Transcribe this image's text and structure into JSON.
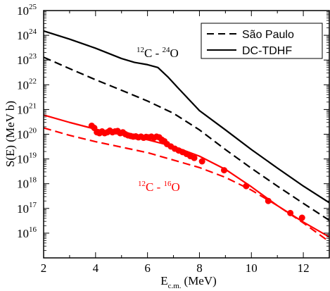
{
  "chart_data": {
    "type": "line",
    "xlabel": "E",
    "xlabel_sub": "c.m.",
    "xlabel_unit": "(MeV)",
    "ylabel": "S(E) (MeV b)",
    "xlim": [
      2,
      13
    ],
    "ylim_log10": [
      15,
      25
    ],
    "y_scale": "log",
    "x_ticks": [
      2,
      4,
      6,
      8,
      10,
      12
    ],
    "y_tick_exponents": [
      16,
      17,
      18,
      19,
      20,
      21,
      22,
      23,
      24,
      25
    ],
    "y_tick_base": "10",
    "legend": {
      "position": "top-right",
      "entries": [
        {
          "label": "São Paulo",
          "style": "dashed"
        },
        {
          "label": "DC-TDHF",
          "style": "solid"
        }
      ]
    },
    "annotations": [
      {
        "mass1": "12",
        "elem1": "C",
        "sep": " - ",
        "mass2": "24",
        "elem2": "O",
        "color": "#000000"
      },
      {
        "mass1": "12",
        "elem1": "C",
        "sep": " - ",
        "mass2": "16",
        "elem2": "O",
        "color": "#ff0000"
      }
    ],
    "series": [
      {
        "system": "12C-24O",
        "model": "DC-TDHF",
        "style": "solid",
        "color": "#000000",
        "x": [
          2.0,
          3.0,
          4.0,
          5.0,
          5.5,
          6.0,
          6.4,
          6.8,
          7.2,
          7.6,
          8.0,
          9.0,
          10.0,
          11.0,
          12.0,
          13.0
        ],
        "y": [
          1.5e+24,
          7e+23,
          3e+23,
          1.15e+23,
          8e+22,
          6.5e+22,
          5e+22,
          2e+22,
          7e+21,
          2.5e+21,
          9e+20,
          1.5e+20,
          2.4e+19,
          4.3e+18,
          8e+17,
          1.7e+17
        ]
      },
      {
        "system": "12C-24O",
        "model": "São Paulo",
        "style": "dashed",
        "color": "#000000",
        "x": [
          2.0,
          3.0,
          4.0,
          5.0,
          6.0,
          7.0,
          8.0,
          9.0,
          10.0,
          11.0,
          12.0,
          13.0
        ],
        "y": [
          1.3e+23,
          4.5e+22,
          1.6e+22,
          6e+21,
          2.2e+21,
          7e+20,
          1.5e+20,
          2.4e+19,
          4.2e+18,
          8e+17,
          1.6e+17,
          3.3e+16
        ]
      },
      {
        "system": "12C-16O",
        "model": "DC-TDHF",
        "style": "solid",
        "color": "#ff0000",
        "x": [
          2.0,
          3.0,
          4.0,
          5.0,
          6.0,
          7.0,
          8.0,
          9.0,
          10.0,
          11.0,
          12.0,
          13.0
        ],
        "y": [
          6e+20,
          3e+20,
          1.6e+20,
          9.5e+19,
          6e+19,
          3.2e+19,
          1.3e+19,
          3.8e+18,
          7.5e+17,
          1.3e+17,
          2.8e+16,
          7000000000000000.0
        ]
      },
      {
        "system": "12C-16O",
        "model": "São Paulo",
        "style": "dashed",
        "color": "#ff0000",
        "x": [
          2.0,
          3.0,
          4.0,
          5.0,
          6.0,
          7.0,
          8.0,
          9.0,
          10.0,
          11.0,
          12.0,
          13.0
        ],
        "y": [
          1.8e+20,
          9e+19,
          5e+19,
          3e+19,
          1.8e+19,
          9e+18,
          4.5e+18,
          1.8e+18,
          5.5e+17,
          1.3e+17,
          2.6e+16,
          4500000000000000.0
        ]
      },
      {
        "system": "12C-16O",
        "model": "experiment",
        "style": "markers",
        "color": "#ff0000",
        "x": [
          3.85,
          3.95,
          4.05,
          4.15,
          4.25,
          4.35,
          4.45,
          4.55,
          4.65,
          4.75,
          4.85,
          4.95,
          5.05,
          5.15,
          5.25,
          5.35,
          5.45,
          5.55,
          5.65,
          5.75,
          5.85,
          5.95,
          6.05,
          6.15,
          6.25,
          6.35,
          6.45,
          6.55,
          6.65,
          6.75,
          6.9,
          7.05,
          7.2,
          7.35,
          7.5,
          7.65,
          7.8,
          8.1,
          8.95,
          9.8,
          10.65,
          11.5,
          11.95
        ],
        "y": [
          2.2e+20,
          1.8e+20,
          1.2e+20,
          1.1e+20,
          1.3e+20,
          1.1e+20,
          1.2e+20,
          1.4e+20,
          1.2e+20,
          1.3e+20,
          1.35e+20,
          1.1e+20,
          1.2e+20,
          1e+20,
          9e+19,
          8.5e+19,
          8e+19,
          8.2e+19,
          7.5e+19,
          8e+19,
          7.2e+19,
          7.8e+19,
          7.5e+19,
          8e+19,
          7.2e+19,
          8e+19,
          7.5e+19,
          6e+19,
          5.2e+19,
          4e+19,
          3.2e+19,
          2.6e+19,
          2.2e+19,
          1.9e+19,
          1.6e+19,
          1.3e+19,
          1.1e+19,
          8e+18,
          3.5e+18,
          8e+17,
          2e+17,
          6.5e+16,
          4.2e+16
        ]
      }
    ]
  }
}
